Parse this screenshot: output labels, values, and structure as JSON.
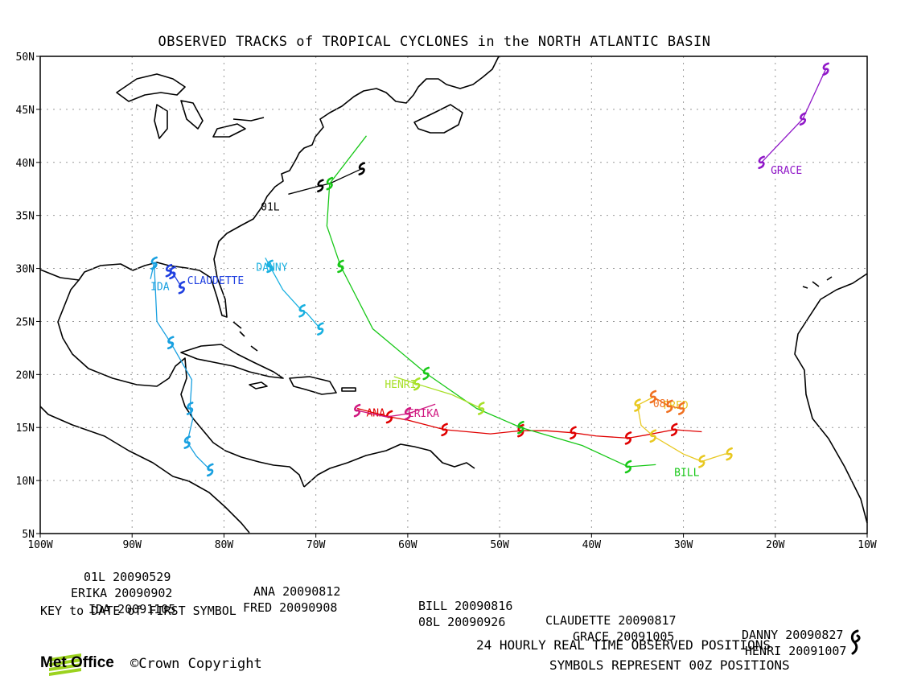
{
  "title": "OBSERVED TRACKS of TROPICAL CYCLONES in the NORTH ATLANTIC BASIN",
  "lat_labels": [
    "50N",
    "45N",
    "40N",
    "35N",
    "30N",
    "25N",
    "20N",
    "15N",
    "10N",
    "5N"
  ],
  "lon_labels": [
    "100W",
    "90W",
    "80W",
    "70W",
    "60W",
    "50W",
    "40W",
    "30W",
    "20W",
    "10W"
  ],
  "storms": [
    {
      "name": "01L",
      "color": "#000000",
      "label": "01L",
      "track": [
        [
          -73,
          37
        ],
        [
          -69.5,
          37.8
        ],
        [
          -68.5,
          38
        ],
        [
          -65,
          39.4
        ]
      ]
    },
    {
      "name": "ANA",
      "color": "#e00000",
      "label": "ANA",
      "track": [
        [
          -65.5,
          16.8
        ],
        [
          -62,
          16
        ],
        [
          -60,
          15.7
        ],
        [
          -56,
          14.8
        ],
        [
          -51,
          14.4
        ],
        [
          -47.7,
          14.7
        ],
        [
          -45,
          14.7
        ],
        [
          -42,
          14.5
        ],
        [
          -39.5,
          14.2
        ],
        [
          -36,
          14
        ],
        [
          -34,
          14.3
        ],
        [
          -31,
          14.8
        ],
        [
          -28,
          14.6
        ]
      ]
    },
    {
      "name": "BILL",
      "color": "#18c818",
      "label": "BILL",
      "track": [
        [
          -33,
          11.5
        ],
        [
          -36,
          11.3
        ],
        [
          -41,
          13.3
        ],
        [
          -47.7,
          15
        ],
        [
          -52.5,
          16.8
        ],
        [
          -58,
          20.1
        ],
        [
          -63.8,
          24.3
        ],
        [
          -67.3,
          30.2
        ],
        [
          -68.8,
          34
        ],
        [
          -68.5,
          38
        ],
        [
          -64.5,
          42.5
        ]
      ]
    },
    {
      "name": "CLAUDETTE",
      "color": "#2040e0",
      "label": "CLAUDETTE",
      "track": [
        [
          -86,
          29.8
        ],
        [
          -85.6,
          29.6
        ],
        [
          -84.6,
          28.2
        ]
      ]
    },
    {
      "name": "DANNY",
      "color": "#18b0e0",
      "label": "DANNY",
      "track": [
        [
          -75.5,
          31
        ],
        [
          -75,
          30.2
        ],
        [
          -73.6,
          28
        ],
        [
          -71.5,
          26
        ],
        [
          -71,
          25.8
        ],
        [
          -69.5,
          24.3
        ]
      ]
    },
    {
      "name": "ERIKA",
      "color": "#d01880",
      "label": "ERIKA",
      "track": [
        [
          -57,
          17.2
        ],
        [
          -60,
          16.3
        ],
        [
          -62.3,
          16
        ],
        [
          -65.5,
          16.6
        ]
      ]
    },
    {
      "name": "FRED",
      "color": "#e8c820",
      "label": "FRED",
      "track": [
        [
          -33.2,
          17.9
        ],
        [
          -35,
          17.1
        ],
        [
          -34.6,
          15.2
        ],
        [
          -33.3,
          14.2
        ],
        [
          -30,
          12.5
        ],
        [
          -28,
          11.8
        ],
        [
          -25.5,
          12.5
        ],
        [
          -25,
          12.5
        ]
      ]
    },
    {
      "name": "08L",
      "color": "#f07020",
      "label": "08L",
      "track": [
        [
          -33.3,
          17.9
        ],
        [
          -31.5,
          17
        ],
        [
          -30.2,
          16.8
        ]
      ]
    },
    {
      "name": "GRACE",
      "color": "#9018c8",
      "label": "GRACE",
      "track": [
        [
          -21.5,
          40
        ],
        [
          -17,
          44.1
        ],
        [
          -14.5,
          48.8
        ]
      ]
    },
    {
      "name": "HENRI",
      "color": "#a8e028",
      "label": "HENRI",
      "track": [
        [
          -61.5,
          19.8
        ],
        [
          -59,
          19.1
        ],
        [
          -55.2,
          18.1
        ],
        [
          -52,
          16.8
        ]
      ]
    },
    {
      "name": "IDA",
      "color": "#18a0e0",
      "label": "IDA",
      "track": [
        [
          -88,
          29
        ],
        [
          -87.6,
          30.5
        ],
        [
          -87.3,
          25
        ],
        [
          -85.8,
          23
        ],
        [
          -83.5,
          19.5
        ],
        [
          -83.7,
          16.8
        ],
        [
          -83.4,
          15.8
        ],
        [
          -84,
          13.6
        ],
        [
          -83,
          12.3
        ],
        [
          -81.5,
          11
        ]
      ]
    }
  ],
  "key": {
    "row1": [
      {
        "name": "01L",
        "date": "20090529"
      },
      {
        "name": "ANA",
        "date": "20090812"
      },
      {
        "name": "BILL",
        "date": "20090816"
      },
      {
        "name": "CLAUDETTE",
        "date": "20090817"
      },
      {
        "name": "DANNY",
        "date": "20090827"
      }
    ],
    "row2": [
      {
        "name": "ERIKA",
        "date": "20090902"
      },
      {
        "name": "FRED",
        "date": "20090908"
      },
      {
        "name": "08L",
        "date": "20090926"
      },
      {
        "name": "GRACE",
        "date": "20091005"
      },
      {
        "name": "HENRI",
        "date": "20091007"
      }
    ],
    "row3": [
      {
        "name": "IDA",
        "date": "20091105"
      }
    ],
    "caption": "KEY to DATE of FIRST SYMBOL"
  },
  "footer": {
    "line1": "24 HOURLY REAL TIME OBSERVED POSITIONS",
    "line2": "SYMBOLS REPRESENT 00Z POSITIONS",
    "brand": "Met Office",
    "copyright": "©Crown Copyright"
  },
  "symbol_icon": "tropical-cyclone-icon"
}
